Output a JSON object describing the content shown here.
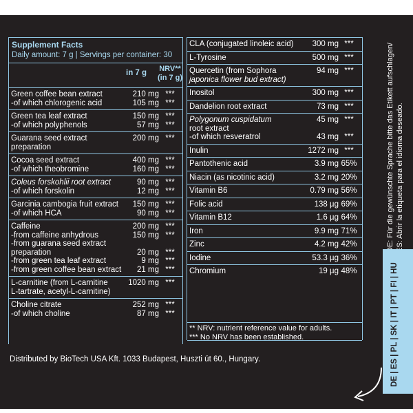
{
  "left": {
    "header": {
      "title": "Supplement Facts",
      "subtitle": "Daily amount: 7 g | Servings per container: 30",
      "col_amount": "in 7 g",
      "col_nrv_1": "NRV**",
      "col_nrv_2": "(in 7 g)"
    },
    "rows": [
      {
        "lines": [
          "Green coffee bean extract",
          "-of which chlorogenic acid"
        ],
        "amounts": [
          "210 mg",
          "105 mg"
        ],
        "nrv": [
          "***",
          "***"
        ]
      },
      {
        "lines": [
          "Green tea leaf extract",
          "-of which polyphenols"
        ],
        "amounts": [
          "150 mg",
          "57 mg"
        ],
        "nrv": [
          "***",
          "***"
        ]
      },
      {
        "lines": [
          "Guarana seed extract",
          "preparation"
        ],
        "amounts": [
          "200 mg"
        ],
        "nrv": [
          "***"
        ]
      },
      {
        "lines": [
          "Cocoa seed extract",
          "-of which theobromine"
        ],
        "amounts": [
          "400 mg",
          "160 mg"
        ],
        "nrv": [
          "***",
          "***"
        ]
      },
      {
        "lines": [
          "Coleus forskohlii root extract",
          "-of which forskolin"
        ],
        "amounts": [
          "90 mg",
          "12 mg"
        ],
        "nrv": [
          "***",
          "***"
        ]
      },
      {
        "lines": [
          "Garcinia cambogia fruit extract",
          "-of which HCA"
        ],
        "amounts": [
          "150 mg",
          "90 mg"
        ],
        "nrv": [
          "***",
          "***"
        ]
      },
      {
        "lines": [
          "Caffeine",
          "-from caffeine anhydrous",
          "-from guarana seed extract",
          "preparation",
          "-from green tea leaf extract",
          "-from green coffee bean extract"
        ],
        "amounts": [
          "200 mg",
          "150 mg",
          "20 mg",
          "9 mg",
          "21 mg"
        ],
        "nrv": [
          "***",
          "***",
          "***",
          "***",
          "***"
        ]
      },
      {
        "lines": [
          "L-carnitine (from L-carnitine",
          "L-tartrate, acetyl-L-carnitine)"
        ],
        "amounts": [
          "1020 mg"
        ],
        "nrv": [
          "***"
        ]
      },
      {
        "lines": [
          "Choline citrate",
          "-of which choline"
        ],
        "amounts": [
          "252 mg",
          "87 mg"
        ],
        "nrv": [
          "***",
          "***"
        ]
      }
    ]
  },
  "right": {
    "rows": [
      {
        "lines": [
          "CLA (conjugated linoleic acid)"
        ],
        "amounts": [
          "300 mg"
        ],
        "nrv": [
          "***"
        ]
      },
      {
        "lines": [
          "L-Tyrosine"
        ],
        "amounts": [
          "500 mg"
        ],
        "nrv": [
          "***"
        ]
      },
      {
        "lines": [
          "Quercetin (from Sophora",
          "japonica flower bud extract)"
        ],
        "amounts": [
          "94 mg"
        ],
        "nrv": [
          "***"
        ]
      },
      {
        "lines": [
          "Inositol"
        ],
        "amounts": [
          "300 mg"
        ],
        "nrv": [
          "***"
        ]
      },
      {
        "lines": [
          "Dandelion root extract"
        ],
        "amounts": [
          "73 mg"
        ],
        "nrv": [
          "***"
        ]
      },
      {
        "lines": [
          "Polygonum cuspidatum",
          "root extract",
          "-of which resveratrol"
        ],
        "amounts": [
          "45 mg",
          "43 mg"
        ],
        "nrv": [
          "***",
          "***"
        ]
      },
      {
        "lines": [
          "Inulin"
        ],
        "amounts": [
          "1272 mg"
        ],
        "nrv": [
          "***"
        ]
      },
      {
        "lines": [
          "Pantothenic acid"
        ],
        "amounts": [
          "3.9 mg"
        ],
        "nrv": [
          "65%"
        ]
      },
      {
        "lines": [
          "Niacin (as nicotinic acid)"
        ],
        "amounts": [
          "3.2 mg"
        ],
        "nrv": [
          "20%"
        ]
      },
      {
        "lines": [
          "Vitamin B6"
        ],
        "amounts": [
          "0.79 mg"
        ],
        "nrv": [
          "56%"
        ]
      },
      {
        "lines": [
          "Folic acid"
        ],
        "amounts": [
          "138 µg"
        ],
        "nrv": [
          "69%"
        ]
      },
      {
        "lines": [
          "Vitamin B12"
        ],
        "amounts": [
          "1.6 µg"
        ],
        "nrv": [
          "64%"
        ]
      },
      {
        "lines": [
          "Iron"
        ],
        "amounts": [
          "9.9 mg"
        ],
        "nrv": [
          "71%"
        ]
      },
      {
        "lines": [
          "Zinc"
        ],
        "amounts": [
          "4.2 mg"
        ],
        "nrv": [
          "42%"
        ]
      },
      {
        "lines": [
          "Iodine"
        ],
        "amounts": [
          "53.3 µg"
        ],
        "nrv": [
          "36%"
        ]
      },
      {
        "lines": [
          "Chromium"
        ],
        "amounts": [
          "19 µg"
        ],
        "nrv": [
          "48%"
        ]
      }
    ],
    "footnotes": [
      "** NRV: nutrient reference value for adults.",
      "*** No NRV has been established."
    ]
  },
  "distributor": "Distributed by BioTech USA Kft. 1033 Budapest, Huszti út 60., Hungary.",
  "side_note_1": "DE: Für die gewünschte Sprache bitte das Etikett aufschlagen/",
  "side_note_2": "ES: Abrir la etiqueta para el idioma deseado.",
  "languages": "DE | ES | PL | SK | IT | PT | FI | HU",
  "colors": {
    "background": "#231f20",
    "accent": "#a9d8ef",
    "text": "#ffffff"
  }
}
